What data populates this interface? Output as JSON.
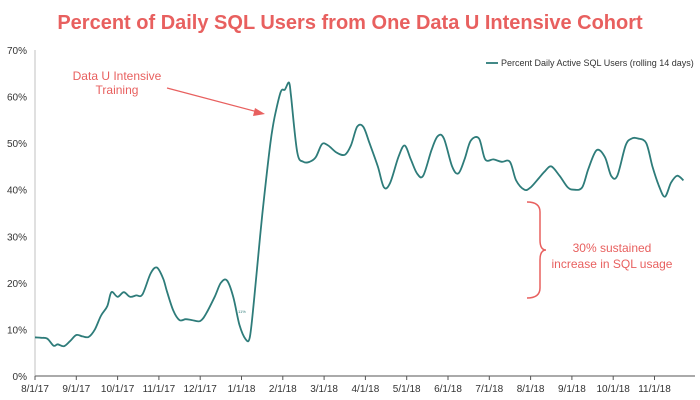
{
  "chart_data": {
    "type": "line",
    "title": "Percent of Daily SQL Users from One Data U Intensive Cohort",
    "xlabel": "",
    "ylabel": "",
    "x_ticks": [
      "8/1/17",
      "9/1/17",
      "10/1/17",
      "11/1/17",
      "12/1/17",
      "1/1/18",
      "2/1/18",
      "3/1/18",
      "4/1/18",
      "5/1/18",
      "6/1/18",
      "7/1/18",
      "8/1/18",
      "9/1/18",
      "10/1/18",
      "11/1/18"
    ],
    "y_ticks": [
      "0%",
      "10%",
      "20%",
      "30%",
      "40%",
      "50%",
      "60%",
      "70%"
    ],
    "ylim": [
      0,
      70
    ],
    "legend_position": "top-right",
    "grid": false,
    "series": [
      {
        "name": "Percent Daily Active SQL Users (rolling 14 days)",
        "color": "#2e7c7a",
        "x": [
          0,
          0.15,
          0.3,
          0.45,
          0.55,
          0.7,
          0.85,
          1.0,
          1.15,
          1.3,
          1.45,
          1.6,
          1.75,
          1.85,
          2.0,
          2.15,
          2.3,
          2.45,
          2.6,
          2.8,
          2.95,
          3.1,
          3.2,
          3.35,
          3.5,
          3.65,
          3.8,
          4.0,
          4.15,
          4.35,
          4.5,
          4.65,
          4.8,
          4.95,
          5.1,
          5.2,
          5.3,
          5.45,
          5.55,
          5.7,
          5.8,
          5.95,
          6.05,
          6.15,
          6.2,
          6.35,
          6.5,
          6.65,
          6.8,
          6.95,
          7.1,
          7.3,
          7.5,
          7.65,
          7.8,
          7.95,
          8.1,
          8.3,
          8.45,
          8.6,
          8.8,
          8.95,
          9.1,
          9.25,
          9.4,
          9.6,
          9.75,
          9.9,
          10.1,
          10.25,
          10.4,
          10.55,
          10.75,
          10.9,
          11.1,
          11.3,
          11.5,
          11.65,
          11.85,
          12.0,
          12.2,
          12.35,
          12.5,
          12.7,
          12.9,
          13.05,
          13.25,
          13.4,
          13.6,
          13.8,
          13.95,
          14.1,
          14.3,
          14.45,
          14.6,
          14.8,
          14.95,
          15.1,
          15.25,
          15.4,
          15.55,
          15.7
        ],
        "values": [
          8.3,
          8.2,
          8.0,
          6.5,
          6.8,
          6.4,
          7.5,
          8.8,
          8.5,
          8.4,
          10.0,
          13.0,
          15.0,
          18.0,
          17.0,
          18.0,
          17.0,
          17.3,
          17.5,
          22.0,
          23.3,
          21.0,
          18.0,
          14.0,
          12.0,
          12.2,
          12.0,
          11.8,
          13.5,
          17.0,
          20.0,
          20.5,
          17.0,
          11.0,
          7.9,
          8.3,
          16.0,
          30.0,
          38.5,
          50.0,
          55.5,
          61.0,
          61.5,
          63.0,
          60.0,
          48.0,
          46.0,
          46.0,
          47.0,
          49.8,
          49.5,
          48.0,
          47.5,
          49.5,
          53.5,
          53.5,
          50.0,
          45.0,
          40.5,
          41.5,
          47.0,
          49.5,
          46.5,
          43.5,
          43.0,
          48.5,
          51.5,
          51.0,
          45.0,
          43.5,
          46.5,
          50.5,
          51.0,
          46.5,
          46.5,
          46.0,
          46.0,
          42.0,
          40.0,
          40.5,
          42.5,
          44.0,
          45.0,
          43.0,
          40.5,
          40.0,
          40.5,
          44.5,
          48.5,
          47.0,
          43.0,
          43.0,
          49.5,
          51.0,
          51.0,
          50.0,
          45.0,
          41.0,
          38.5,
          41.5,
          43.0,
          42.0
        ]
      }
    ],
    "annotations": {
      "training_line1": "Data U Intensive",
      "training_line2": "Training",
      "increase_line1": "30% sustained",
      "increase_line2": "increase in SQL usage",
      "point_label": "11%"
    }
  }
}
